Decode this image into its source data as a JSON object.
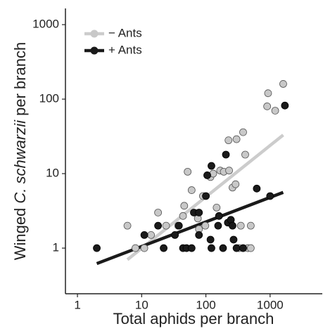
{
  "chart_data": {
    "type": "scatter",
    "x_label": "Total aphids per branch",
    "y_label_parts": [
      "Winged ",
      "C. schwarzii",
      " per branch"
    ],
    "log_x": true,
    "log_y": true,
    "grid": false,
    "legend": "top-left",
    "xlim": [
      0.65,
      6500
    ],
    "ylim": [
      0.244,
      1650
    ],
    "xticks": [
      1,
      10,
      100,
      1000
    ],
    "yticks": [
      1,
      10,
      100,
      1000
    ],
    "series": [
      {
        "name": "− Ants",
        "color": "#c8c8c8",
        "line_color": "#cccccc",
        "x": [
          6,
          8,
          11,
          14,
          18,
          24,
          37,
          46,
          44,
          52,
          60,
          75,
          78,
          90,
          98,
          118,
          130,
          147,
          167,
          190,
          230,
          225,
          260,
          290,
          300,
          380,
          410,
          350,
          330,
          450,
          500,
          900,
          930,
          1200,
          1600,
          500
        ],
        "values": [
          2,
          1,
          1,
          1.5,
          3,
          2,
          2,
          3.7,
          2.7,
          10.6,
          6,
          2.5,
          1.8,
          5,
          2,
          9,
          10,
          3.5,
          11,
          10.6,
          11,
          28,
          6.5,
          7.2,
          29,
          36,
          18,
          2,
          1,
          1,
          1,
          80,
          120,
          70,
          160,
          2
        ],
        "fit": {
          "x": [
            6,
            1600
          ],
          "values": [
            0.7,
            33
          ]
        }
      },
      {
        "name": "+ Ants",
        "color": "#1a1a1a",
        "line_color": "#1a1a1a",
        "x": [
          2,
          11,
          18,
          22,
          33,
          44,
          50,
          60,
          65,
          78,
          78,
          105,
          122,
          118,
          122,
          155,
          160,
          185,
          205,
          220,
          245,
          260,
          270,
          300,
          380,
          620,
          1000,
          1700,
          100,
          38
        ],
        "values": [
          1,
          1.5,
          2,
          1,
          1.5,
          1,
          1,
          1,
          3,
          3,
          1.5,
          9.5,
          12.7,
          1.3,
          1,
          2,
          2.7,
          1,
          18,
          2.2,
          2.4,
          2,
          1.3,
          1,
          1,
          6.3,
          5,
          82,
          5,
          2
        ],
        "fit": {
          "x": [
            2,
            1600
          ],
          "values": [
            0.62,
            5.6
          ]
        }
      }
    ]
  }
}
